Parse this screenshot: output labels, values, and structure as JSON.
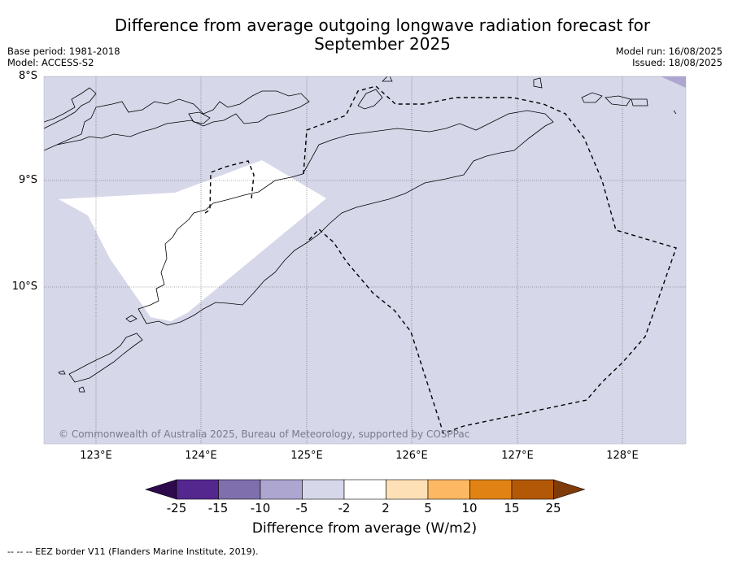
{
  "title_line1": "Difference from average outgoing longwave radiation forecast for",
  "title_line2": "September 2025",
  "meta": {
    "base_period": "Base period: 1981-2018",
    "model": "Model: ACCESS-S2",
    "model_run": "Model run: 16/08/2025",
    "issued": "Issued: 18/08/2025"
  },
  "map": {
    "latitudes": [
      "8°S",
      "9°S",
      "10°S"
    ],
    "longitudes": [
      "123°E",
      "124°E",
      "125°E",
      "126°E",
      "127°E",
      "128°E"
    ],
    "background_color": "#d7d7ea",
    "copyright": "© Commonwealth of Australia 2025, Bureau of Meteorology, supported by COSPPac"
  },
  "colorbar": {
    "label": "Difference from average (W/m2)",
    "ticks": [
      "-25",
      "-15",
      "-10",
      "-5",
      "-2",
      "2",
      "5",
      "10",
      "15",
      "25"
    ],
    "colors": [
      "#2d0a4b",
      "#54278f",
      "#7f70ad",
      "#aca6d1",
      "#d7d7ea",
      "#ffffff",
      "#fee0b6",
      "#fdb863",
      "#e08214",
      "#b35806",
      "#7f3b08"
    ]
  },
  "footnote": "--  --  -- EEZ border V11 (Flanders Marine Institute, 2019)."
}
